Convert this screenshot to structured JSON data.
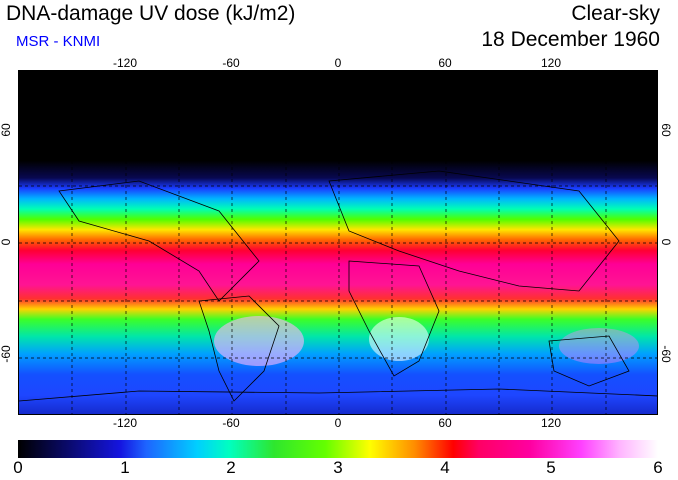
{
  "header": {
    "title": "DNA-damage UV dose (kJ/m2)",
    "subtitle": "MSR - KNMI",
    "condition": "Clear-sky",
    "date": "18 December 1960"
  },
  "map": {
    "longitude_ticks": [
      "-120",
      "-60",
      "0",
      "60",
      "120"
    ],
    "latitude_ticks": [
      "60",
      "0",
      "-60"
    ],
    "longitude_values": [
      -120,
      -60,
      0,
      60,
      120
    ],
    "latitude_values": [
      60,
      0,
      -60
    ],
    "lon_range": [
      -180,
      180
    ],
    "lat_range": [
      -90,
      90
    ]
  },
  "colorbar": {
    "labels": [
      "0",
      "1",
      "2",
      "3",
      "4",
      "5",
      "6"
    ],
    "values": [
      0,
      1,
      2,
      3,
      4,
      5,
      6
    ],
    "range": [
      0,
      6
    ]
  }
}
